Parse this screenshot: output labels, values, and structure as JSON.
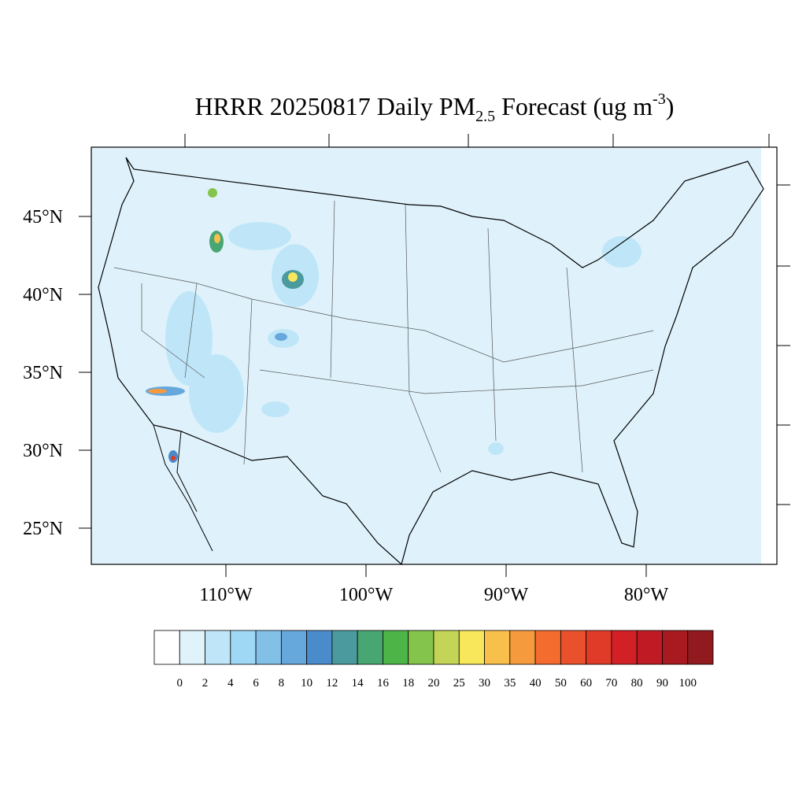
{
  "title": {
    "main": "HRRR 20250817 Daily PM",
    "sub": "2.5",
    "mid": " Forecast (ug m",
    "sup": "-3",
    "end": ")"
  },
  "lat_labels": [
    "45°N",
    "40°N",
    "35°N",
    "30°N",
    "25°N"
  ],
  "lon_labels": [
    "110°W",
    "100°W",
    "90°W",
    "80°W"
  ],
  "colorbar": {
    "levels": [
      0,
      2,
      4,
      6,
      8,
      10,
      12,
      14,
      16,
      18,
      20,
      25,
      30,
      35,
      40,
      50,
      60,
      70,
      80,
      90,
      100
    ],
    "colors": [
      "#ffffff",
      "#e0f3fb",
      "#bfe6f8",
      "#9fd8f4",
      "#83c0e8",
      "#67a8dc",
      "#4a8ccb",
      "#4b9a9e",
      "#48a673",
      "#4db448",
      "#84c44c",
      "#c3d457",
      "#f8e75a",
      "#f9bf4b",
      "#f69a3e",
      "#f46c2e",
      "#e9512c",
      "#e03b28",
      "#d22027",
      "#c01b25",
      "#a81a20",
      "#901a1d"
    ]
  }
}
